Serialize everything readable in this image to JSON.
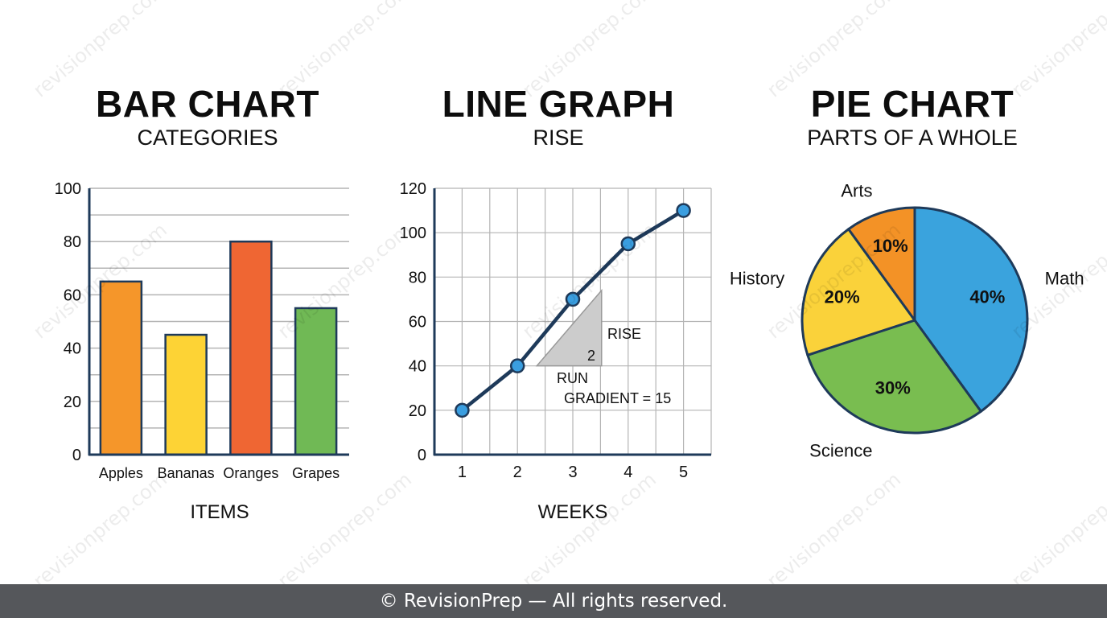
{
  "watermark_text": "revisionprep.com",
  "footer_text": "© RevisionPrep — All rights reserved.",
  "colors": {
    "axis": "#1e3a5a",
    "grid": "#b4b4b4",
    "line": "#1e3a5a",
    "point": "#3a9ee0",
    "triangle": "#cccccc"
  },
  "chart_data": [
    {
      "type": "bar",
      "title": "BAR CHART",
      "subtitle": "CATEGORIES",
      "xlabel": "ITEMS",
      "ylabel": "",
      "categories": [
        "Apples",
        "Bananas",
        "Oranges",
        "Grapes"
      ],
      "values": [
        65,
        45,
        80,
        55
      ],
      "colors": [
        "#f5962a",
        "#fdd335",
        "#ef6633",
        "#70b955"
      ],
      "ylim": [
        0,
        100
      ],
      "yticks": [
        "0",
        "20",
        "40",
        "60",
        "80",
        "100"
      ],
      "grid": true
    },
    {
      "type": "line",
      "title": "LINE GRAPH",
      "subtitle": "RISE",
      "xlabel": "WEEKS",
      "ylabel": "",
      "x": [
        1,
        2,
        3,
        4,
        5
      ],
      "y": [
        20,
        40,
        70,
        95,
        110
      ],
      "xlim": [
        0.5,
        5.5
      ],
      "ylim": [
        0,
        120
      ],
      "xticks": [
        "1",
        "2",
        "3",
        "4",
        "5"
      ],
      "yticks": [
        "0",
        "20",
        "40",
        "60",
        "80",
        "100",
        "120"
      ],
      "grid": true,
      "annotations": {
        "rise": "RISE",
        "run": "RUN",
        "run_value": "2",
        "gradient": "GRADIENT = 15"
      }
    },
    {
      "type": "pie",
      "title": "PIE CHART",
      "subtitle": "PARTS OF A WHOLE",
      "slices": [
        {
          "label": "Math",
          "value": 40,
          "pct_label": "40%",
          "color": "#3aa3dd"
        },
        {
          "label": "Science",
          "value": 30,
          "pct_label": "30%",
          "color": "#79bd50"
        },
        {
          "label": "History",
          "value": 20,
          "pct_label": "20%",
          "color": "#fad23a"
        },
        {
          "label": "Arts",
          "value": 10,
          "pct_label": "10%",
          "color": "#f39226"
        }
      ],
      "start": "top, clockwise"
    }
  ]
}
